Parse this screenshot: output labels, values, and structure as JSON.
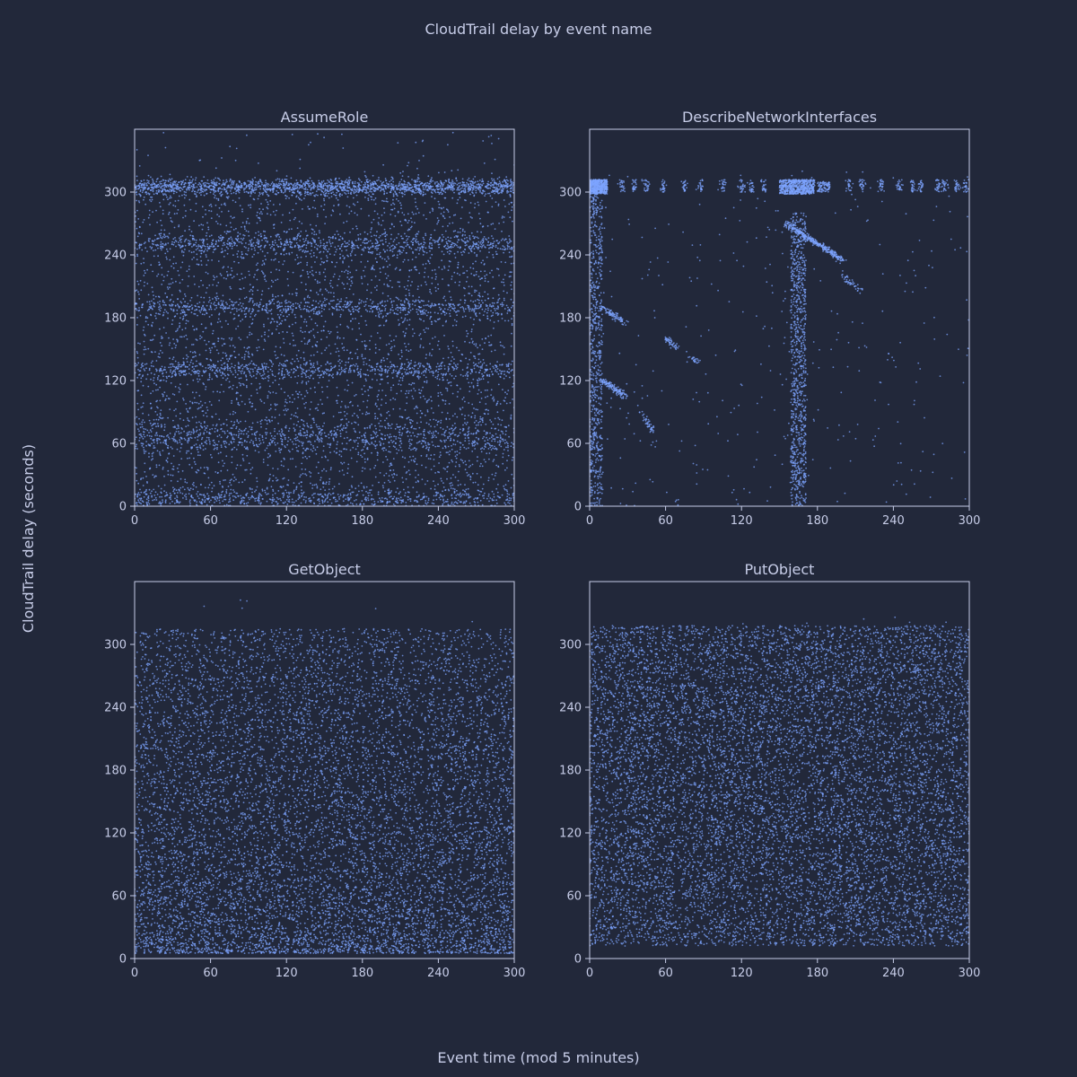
{
  "figure": {
    "title": "CloudTrail delay by event name",
    "xlabel": "Event time (mod 5 minutes)",
    "ylabel": "CloudTrail delay (seconds)"
  },
  "colors": {
    "background": "#22283a",
    "axes_frame": "#c7cde8",
    "text": "#c7cde8",
    "points": "#7ea4ff"
  },
  "chart_data": [
    {
      "type": "scatter",
      "title": "AssumeRole",
      "xlim": [
        0,
        300
      ],
      "ylim": [
        0,
        360
      ],
      "xticks": [
        0,
        60,
        120,
        180,
        240,
        300
      ],
      "yticks": [
        0,
        60,
        120,
        180,
        240,
        300
      ],
      "grid": false,
      "approx_points": 9000,
      "distribution": "uniform density with dense horizontal bands near delay 5, 65, 130, 190, 250 and 305 s; sparse points up to 355 s",
      "bands": [
        {
          "delay": 305,
          "weight": 0.18,
          "spread": 4
        },
        {
          "delay": 250,
          "weight": 0.08,
          "spread": 5
        },
        {
          "delay": 190,
          "weight": 0.07,
          "spread": 4
        },
        {
          "delay": 130,
          "weight": 0.07,
          "spread": 4
        },
        {
          "delay": 65,
          "weight": 0.08,
          "spread": 8
        },
        {
          "delay": 8,
          "weight": 0.06,
          "spread": 5
        }
      ]
    },
    {
      "type": "scatter",
      "title": "DescribeNetworkInterfaces",
      "xlim": [
        0,
        300
      ],
      "ylim": [
        0,
        360
      ],
      "xticks": [
        0,
        60,
        120,
        180,
        240,
        300
      ],
      "yticks": [
        0,
        60,
        120,
        180,
        240,
        300
      ],
      "grid": false,
      "approx_points": 4500,
      "distribution": "dense clusters at delay ~305 s around event time 0-15 s and 150-175 s, vertical streaks at event time ~5 s and ~165 s, diagonal streaks of decreasing delay",
      "clusters": [
        {
          "x": [
            0,
            14
          ],
          "y": [
            298,
            312
          ],
          "weight": 0.12
        },
        {
          "x": [
            150,
            178
          ],
          "y": [
            298,
            312
          ],
          "weight": 0.14
        },
        {
          "x": [
            180,
            190
          ],
          "y": [
            300,
            310
          ],
          "weight": 0.02
        }
      ],
      "vertical_streaks": [
        {
          "x": 5,
          "width": 5,
          "y": [
            0,
            300
          ],
          "weight": 0.15
        },
        {
          "x": 165,
          "width": 6,
          "y": [
            0,
            280
          ],
          "weight": 0.2
        }
      ],
      "diagonals": [
        {
          "from": [
            155,
            270
          ],
          "to": [
            200,
            235
          ],
          "weight": 0.08
        },
        {
          "from": [
            10,
            190
          ],
          "to": [
            28,
            175
          ],
          "weight": 0.02
        },
        {
          "from": [
            10,
            120
          ],
          "to": [
            28,
            105
          ],
          "weight": 0.03
        },
        {
          "from": [
            60,
            160
          ],
          "to": [
            70,
            150
          ],
          "weight": 0.01
        },
        {
          "from": [
            80,
            142
          ],
          "to": [
            85,
            137
          ],
          "weight": 0.005
        },
        {
          "from": [
            40,
            92
          ],
          "to": [
            50,
            70
          ],
          "weight": 0.01
        },
        {
          "from": [
            200,
            220
          ],
          "to": [
            215,
            205
          ],
          "weight": 0.01
        }
      ]
    },
    {
      "type": "scatter",
      "title": "GetObject",
      "xlim": [
        0,
        300
      ],
      "ylim": [
        0,
        360
      ],
      "xticks": [
        0,
        60,
        120,
        180,
        240,
        300
      ],
      "yticks": [
        0,
        60,
        120,
        180,
        240,
        300
      ],
      "grid": false,
      "approx_points": 9500,
      "distribution": "points fill delay 5-315 s, density highest at low delay and decreasing upward",
      "y_range": [
        5,
        315
      ]
    },
    {
      "type": "scatter",
      "title": "PutObject",
      "xlim": [
        0,
        300
      ],
      "ylim": [
        0,
        360
      ],
      "xticks": [
        0,
        60,
        120,
        180,
        240,
        300
      ],
      "yticks": [
        0,
        60,
        120,
        180,
        240,
        300
      ],
      "grid": false,
      "approx_points": 11000,
      "distribution": "roughly uniform density across delay 12-318 s for all event times",
      "y_range": [
        12,
        318
      ]
    }
  ]
}
